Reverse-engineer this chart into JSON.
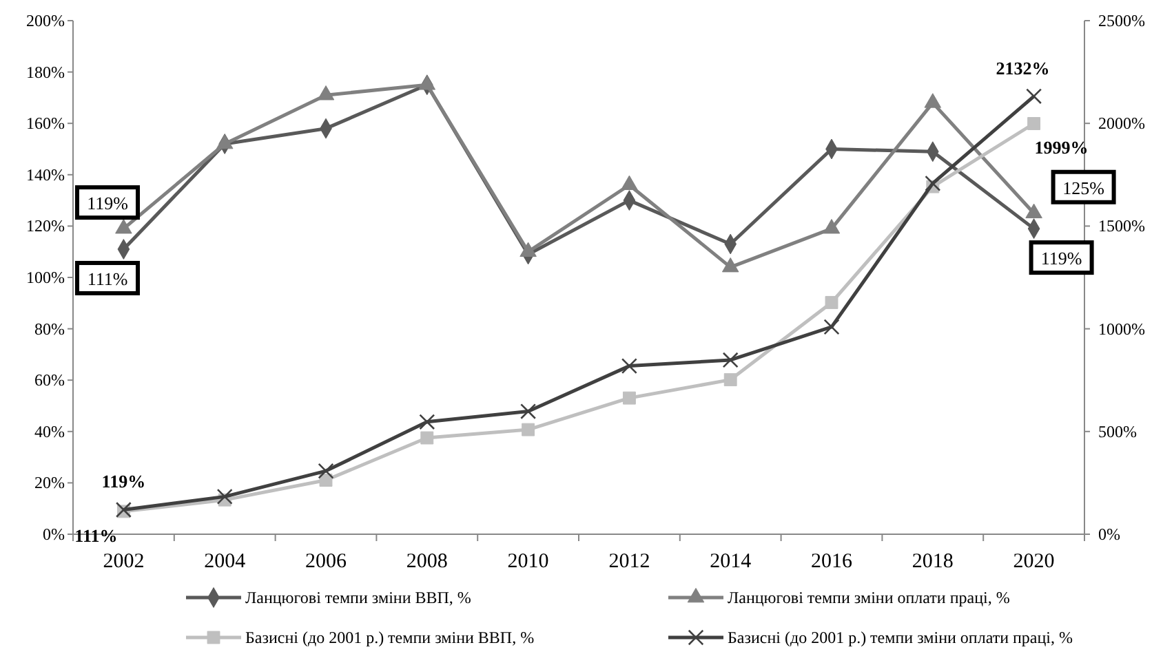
{
  "chart_data": {
    "type": "line",
    "categories": [
      "2002",
      "2004",
      "2006",
      "2008",
      "2010",
      "2012",
      "2014",
      "2016",
      "2018",
      "2020"
    ],
    "ylim": [
      0,
      200
    ],
    "yticks": [
      {
        "value": 0,
        "label": "0%"
      },
      {
        "value": 20,
        "label": "20%"
      },
      {
        "value": 40,
        "label": "40%"
      },
      {
        "value": 60,
        "label": "60%"
      },
      {
        "value": 80,
        "label": "80%"
      },
      {
        "value": 100,
        "label": "100%"
      },
      {
        "value": 120,
        "label": "120%"
      },
      {
        "value": 140,
        "label": "140%"
      },
      {
        "value": 160,
        "label": "160%"
      },
      {
        "value": 180,
        "label": "180%"
      },
      {
        "value": 200,
        "label": "200%"
      }
    ],
    "y2lim": [
      0,
      2500
    ],
    "y2ticks": [
      {
        "value": 0,
        "label": "0%"
      },
      {
        "value": 500,
        "label": "500%"
      },
      {
        "value": 1000,
        "label": "1000%"
      },
      {
        "value": 1500,
        "label": "1500%"
      },
      {
        "value": 2000,
        "label": "2000%"
      },
      {
        "value": 2500,
        "label": "2500%"
      }
    ],
    "grid": false,
    "legend": "bottom",
    "line_style": "solid",
    "series": [
      {
        "name": "Ланцюгові темпи зміни ВВП, %",
        "color": "#595959",
        "marker": "diamond",
        "values": [
          111,
          152,
          158,
          175,
          109,
          130,
          113,
          150,
          149,
          119
        ],
        "value_labels": [
          "111%",
          null,
          null,
          null,
          null,
          null,
          null,
          null,
          null,
          "119%"
        ]
      },
      {
        "name": "Ланцюгові темпи зміни оплати праці, %",
        "color": "#808080",
        "marker": "triangle",
        "values": [
          119,
          152,
          171,
          175,
          110,
          136,
          104,
          119,
          168,
          125
        ],
        "value_labels": [
          "119%",
          null,
          null,
          null,
          null,
          null,
          null,
          null,
          null,
          "125%"
        ]
      },
      {
        "name": "Базисні (до 2001 р.) темпи зміни ВВП, %",
        "color": "#bfbfbf",
        "marker": "square",
        "axis": "y2",
        "values": [
          111,
          167,
          263,
          469,
          509,
          663,
          752,
          1128,
          1692,
          1999
        ],
        "value_labels": [
          "111%",
          null,
          null,
          null,
          null,
          null,
          null,
          null,
          null,
          "1999%"
        ]
      },
      {
        "name": "Базисні (до 2001 р.) темпи зміни оплати праці, %",
        "color": "#404040",
        "marker": "cross",
        "axis": "y2",
        "values": [
          119,
          183,
          308,
          547,
          598,
          819,
          848,
          1009,
          1708,
          2132
        ],
        "value_labels": [
          "119%",
          null,
          null,
          null,
          null,
          null,
          null,
          null,
          null,
          "2132%"
        ]
      }
    ]
  }
}
